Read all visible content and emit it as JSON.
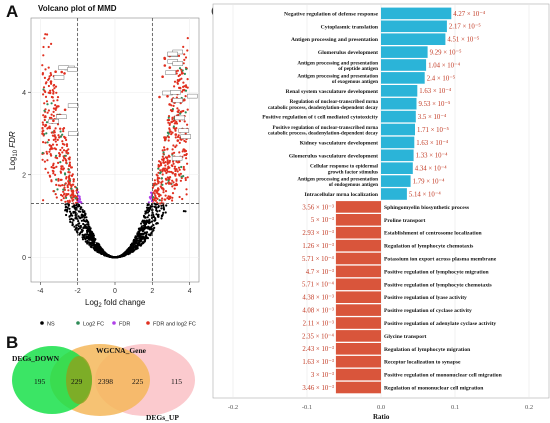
{
  "panels": {
    "a": "A",
    "b": "B",
    "c": "C"
  },
  "volcano": {
    "title": "Volcano plot of MMD",
    "xlabel_prefix": "Log",
    "xlabel_sub": "2",
    "xlabel_suffix": " fold change",
    "ylabel_prefix": "Log",
    "ylabel_sub": "10",
    "ylabel_suffix": " FDR",
    "xticks": [
      "-4",
      "-2",
      "0",
      "2",
      "4"
    ],
    "yticks": [
      "0",
      "2",
      "4"
    ],
    "legend": [
      {
        "label": "NS",
        "color": "#000000"
      },
      {
        "label": "Log2 FC",
        "color": "#2e8b57"
      },
      {
        "label": "FDR",
        "color": "#b040e8"
      },
      {
        "label": "FDR and log2 FC",
        "color": "#e03020"
      }
    ]
  },
  "venn": {
    "labels": {
      "left": "DEGs_DOWN",
      "middle": "WGCNA_Gene",
      "right": "DEGs_UP"
    },
    "counts": [
      "195",
      "229",
      "2398",
      "225",
      "115"
    ],
    "colors": {
      "left": "#19e04a",
      "middle": "#f5b75a",
      "right": "#f9b8be"
    }
  },
  "chart_data": {
    "type": "bar",
    "xlabel": "Ratio",
    "xlim": [
      -0.2,
      0.2
    ],
    "xticks": [
      "-0.2",
      "-0.1",
      "0.0",
      "0.1",
      "0.2"
    ],
    "colors": {
      "positive": "#2bb4d8",
      "negative": "#d9553b"
    },
    "bars": [
      {
        "term": "Negative regulation of defense response",
        "value": 0.095,
        "pval": "4.27 × 10⁻⁴"
      },
      {
        "term": "Cytoplasmic translation",
        "value": 0.089,
        "pval": "2.17 × 10⁻⁵"
      },
      {
        "term": "Antigen processing and presentation",
        "value": 0.087,
        "pval": "4.51 × 10⁻⁵"
      },
      {
        "term": "Glomerulus development",
        "value": 0.063,
        "pval": "9.29 × 10⁻⁵"
      },
      {
        "term": "Antigen processing and presentation of peptide antigen",
        "value": 0.061,
        "pval": "1.04 × 10⁻⁴"
      },
      {
        "term": "Antigen processing and presentation of exogenous antigen",
        "value": 0.059,
        "pval": "2.4 × 10⁻⁵"
      },
      {
        "term": "Renal system vasculature development",
        "value": 0.049,
        "pval": "1.63 × 10⁻⁴"
      },
      {
        "term": "Regulation of nuclear-transcribed mrna catabolic process, deadenylation-dependent decay",
        "value": 0.048,
        "pval": "9.53 × 10⁻⁵"
      },
      {
        "term": "Positive regulation of t cell mediated cytotoxicity",
        "value": 0.047,
        "pval": "3.5 × 10⁻⁴"
      },
      {
        "term": "Positive regulation of nuclear-transcribed mrna catabolic process, deadenylation-dependent decay",
        "value": 0.046,
        "pval": "1.71 × 10⁻⁵"
      },
      {
        "term": "Kidney vasculature development",
        "value": 0.045,
        "pval": "1.63 × 10⁻⁴"
      },
      {
        "term": "Glomerulus vasculature development",
        "value": 0.044,
        "pval": "1.33 × 10⁻⁴"
      },
      {
        "term": "Cellular response to epidermal growth factor stimulus",
        "value": 0.043,
        "pval": "4.34 × 10⁻⁴"
      },
      {
        "term": "Antigen processing and presentation of endogenous antigen",
        "value": 0.04,
        "pval": "1.79 × 10⁻⁴"
      },
      {
        "term": "Intracellular mrna localization",
        "value": 0.035,
        "pval": "5.14 × 10⁻⁴"
      },
      {
        "term": "Sphingomyelin biosynthetic process",
        "value": -0.061,
        "pval": "3.56 × 10⁻³"
      },
      {
        "term": "Proline transport",
        "value": -0.061,
        "pval": "5 × 10⁻³"
      },
      {
        "term": "Establishment of centrosome localization",
        "value": -0.061,
        "pval": "2.93 × 10⁻³"
      },
      {
        "term": "Regulation of lymphocyte chemotaxis",
        "value": -0.061,
        "pval": "1.26 × 10⁻³"
      },
      {
        "term": "Potassium ion export across plasma membrane",
        "value": -0.061,
        "pval": "5.71 × 10⁻⁴"
      },
      {
        "term": "Positive regulation of lymphocyte migration",
        "value": -0.061,
        "pval": "4.7 × 10⁻³"
      },
      {
        "term": "Positive regulation of lymphocyte chemotaxis",
        "value": -0.061,
        "pval": "5.71 × 10⁻⁴"
      },
      {
        "term": "Positive regulation of lyase activity",
        "value": -0.061,
        "pval": "4.38 × 10⁻³"
      },
      {
        "term": "Positive regulation of cyclase activity",
        "value": -0.061,
        "pval": "4.08 × 10⁻³"
      },
      {
        "term": "Positive regulation of adenylate cyclase activity",
        "value": -0.061,
        "pval": "2.11 × 10⁻³"
      },
      {
        "term": "Glycine transport",
        "value": -0.061,
        "pval": "2.35 × 10⁻⁴"
      },
      {
        "term": "Regulation of lymphocyte migration",
        "value": -0.061,
        "pval": "2.43 × 10⁻³"
      },
      {
        "term": "Receptor localization to synapse",
        "value": -0.061,
        "pval": "1.63 × 10⁻³"
      },
      {
        "term": "Positive regulation of mononuclear cell migration",
        "value": -0.061,
        "pval": "3 × 10⁻³"
      },
      {
        "term": "Regulation of mononuclear cell migration",
        "value": -0.061,
        "pval": "3.46 × 10⁻³"
      }
    ]
  }
}
